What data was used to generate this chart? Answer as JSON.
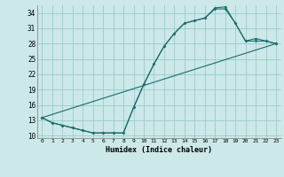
{
  "xlabel": "Humidex (Indice chaleur)",
  "bg_color": "#cce8e8",
  "grid_color": "#99cccc",
  "line_color": "#1a6b6b",
  "xlim": [
    -0.5,
    23.5
  ],
  "ylim": [
    9.5,
    35.5
  ],
  "yticks": [
    10,
    13,
    16,
    19,
    22,
    25,
    28,
    31,
    34
  ],
  "xticks": [
    0,
    1,
    2,
    3,
    4,
    5,
    6,
    7,
    8,
    9,
    10,
    11,
    12,
    13,
    14,
    15,
    16,
    17,
    18,
    19,
    20,
    21,
    22,
    23
  ],
  "line1_x": [
    0,
    1,
    2,
    3,
    4,
    5,
    6,
    7,
    8,
    9,
    10,
    11,
    12,
    13,
    14,
    15,
    16,
    17,
    18,
    19,
    20,
    21,
    22,
    23
  ],
  "line1_y": [
    13.5,
    12.5,
    12.0,
    11.5,
    11.0,
    10.5,
    10.5,
    10.5,
    10.5,
    15.5,
    20.0,
    24.0,
    27.5,
    30.0,
    32.0,
    32.5,
    33.0,
    35.0,
    35.2,
    32.0,
    28.5,
    29.0,
    28.5,
    28.0
  ],
  "line2_x": [
    0,
    1,
    2,
    3,
    4,
    5,
    6,
    7,
    8,
    9,
    10,
    11,
    12,
    13,
    14,
    15,
    16,
    17,
    18,
    19,
    20,
    21,
    22,
    23
  ],
  "line2_y": [
    13.5,
    12.5,
    12.0,
    11.5,
    11.0,
    10.5,
    10.5,
    10.5,
    10.5,
    15.5,
    20.0,
    24.0,
    27.5,
    30.0,
    32.0,
    32.5,
    33.0,
    34.8,
    34.8,
    32.0,
    28.5,
    28.5,
    28.5,
    28.0
  ],
  "line3_x": [
    0,
    23
  ],
  "line3_y": [
    13.5,
    28.0
  ]
}
